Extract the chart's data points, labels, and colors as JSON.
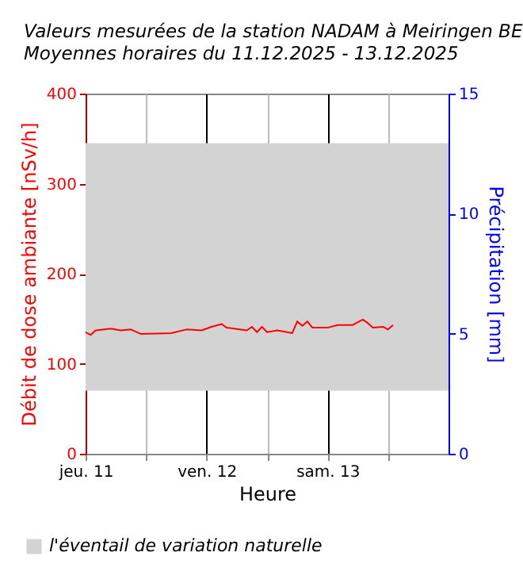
{
  "chart_data": {
    "type": "line",
    "title": [
      "Valeurs mesurées de la station NADAM à Meiringen BE",
      "Moyennes horaires du 11.12.2025 - 13.12.2025"
    ],
    "xlabel": "Heure",
    "ylabel": "Débit de dose ambiante [nSv/h]",
    "y2label": "Précipitation [mm]",
    "x": [
      "2025-12-11T00:00",
      "2025-12-11T01:00",
      "2025-12-11T02:00",
      "2025-12-11T05:00",
      "2025-12-11T07:00",
      "2025-12-11T09:00",
      "2025-12-11T11:00",
      "2025-12-11T17:00",
      "2025-12-11T20:00",
      "2025-12-11T23:00",
      "2025-12-12T01:00",
      "2025-12-12T03:00",
      "2025-12-12T04:00",
      "2025-12-12T08:00",
      "2025-12-12T09:00",
      "2025-12-12T10:00",
      "2025-12-12T11:00",
      "2025-12-12T12:00",
      "2025-12-12T14:00",
      "2025-12-12T16:00",
      "2025-12-12T17:00",
      "2025-12-12T18:00",
      "2025-12-12T19:00",
      "2025-12-12T20:00",
      "2025-12-12T21:00",
      "2025-12-13T00:00",
      "2025-12-13T02:00",
      "2025-12-13T05:00",
      "2025-12-13T07:00",
      "2025-12-13T08:00",
      "2025-12-13T09:00",
      "2025-12-13T11:00",
      "2025-12-13T12:00",
      "2025-12-13T13:00"
    ],
    "series": [
      {
        "color": "#ff0000",
        "values": [
          135,
          132,
          137,
          139,
          137,
          138,
          133,
          134,
          138,
          137,
          141,
          144,
          140,
          137,
          141,
          135,
          141,
          135,
          137,
          135,
          134,
          147,
          142,
          147,
          140,
          140,
          143,
          143,
          149,
          145,
          140,
          141,
          138,
          143
        ]
      }
    ],
    "xlim": [
      "2025-12-11T00:00",
      "2025-12-14T00:00"
    ],
    "xticks": [
      {
        "value": "2025-12-11T00:00",
        "label": "jeu. 11"
      },
      {
        "value": "2025-12-11T12:00",
        "label": null
      },
      {
        "value": "2025-12-12T00:00",
        "label": "ven. 12"
      },
      {
        "value": "2025-12-12T12:00",
        "label": null
      },
      {
        "value": "2025-12-13T00:00",
        "label": "sam. 13"
      },
      {
        "value": "2025-12-13T12:00",
        "label": null
      }
    ],
    "ylim": [
      0,
      400
    ],
    "yticks": [
      0,
      100,
      200,
      300,
      400
    ],
    "y2lim": [
      0,
      15
    ],
    "y2ticks": [
      0,
      5,
      10,
      15
    ],
    "bands": [
      {
        "axis": "y",
        "from": 70,
        "to": 345,
        "label": "l'éventail de variation naturelle",
        "color": "#d3d3d3"
      }
    ],
    "grid": "x",
    "legend": "bottom",
    "marker": "none",
    "line_style": "solid"
  }
}
